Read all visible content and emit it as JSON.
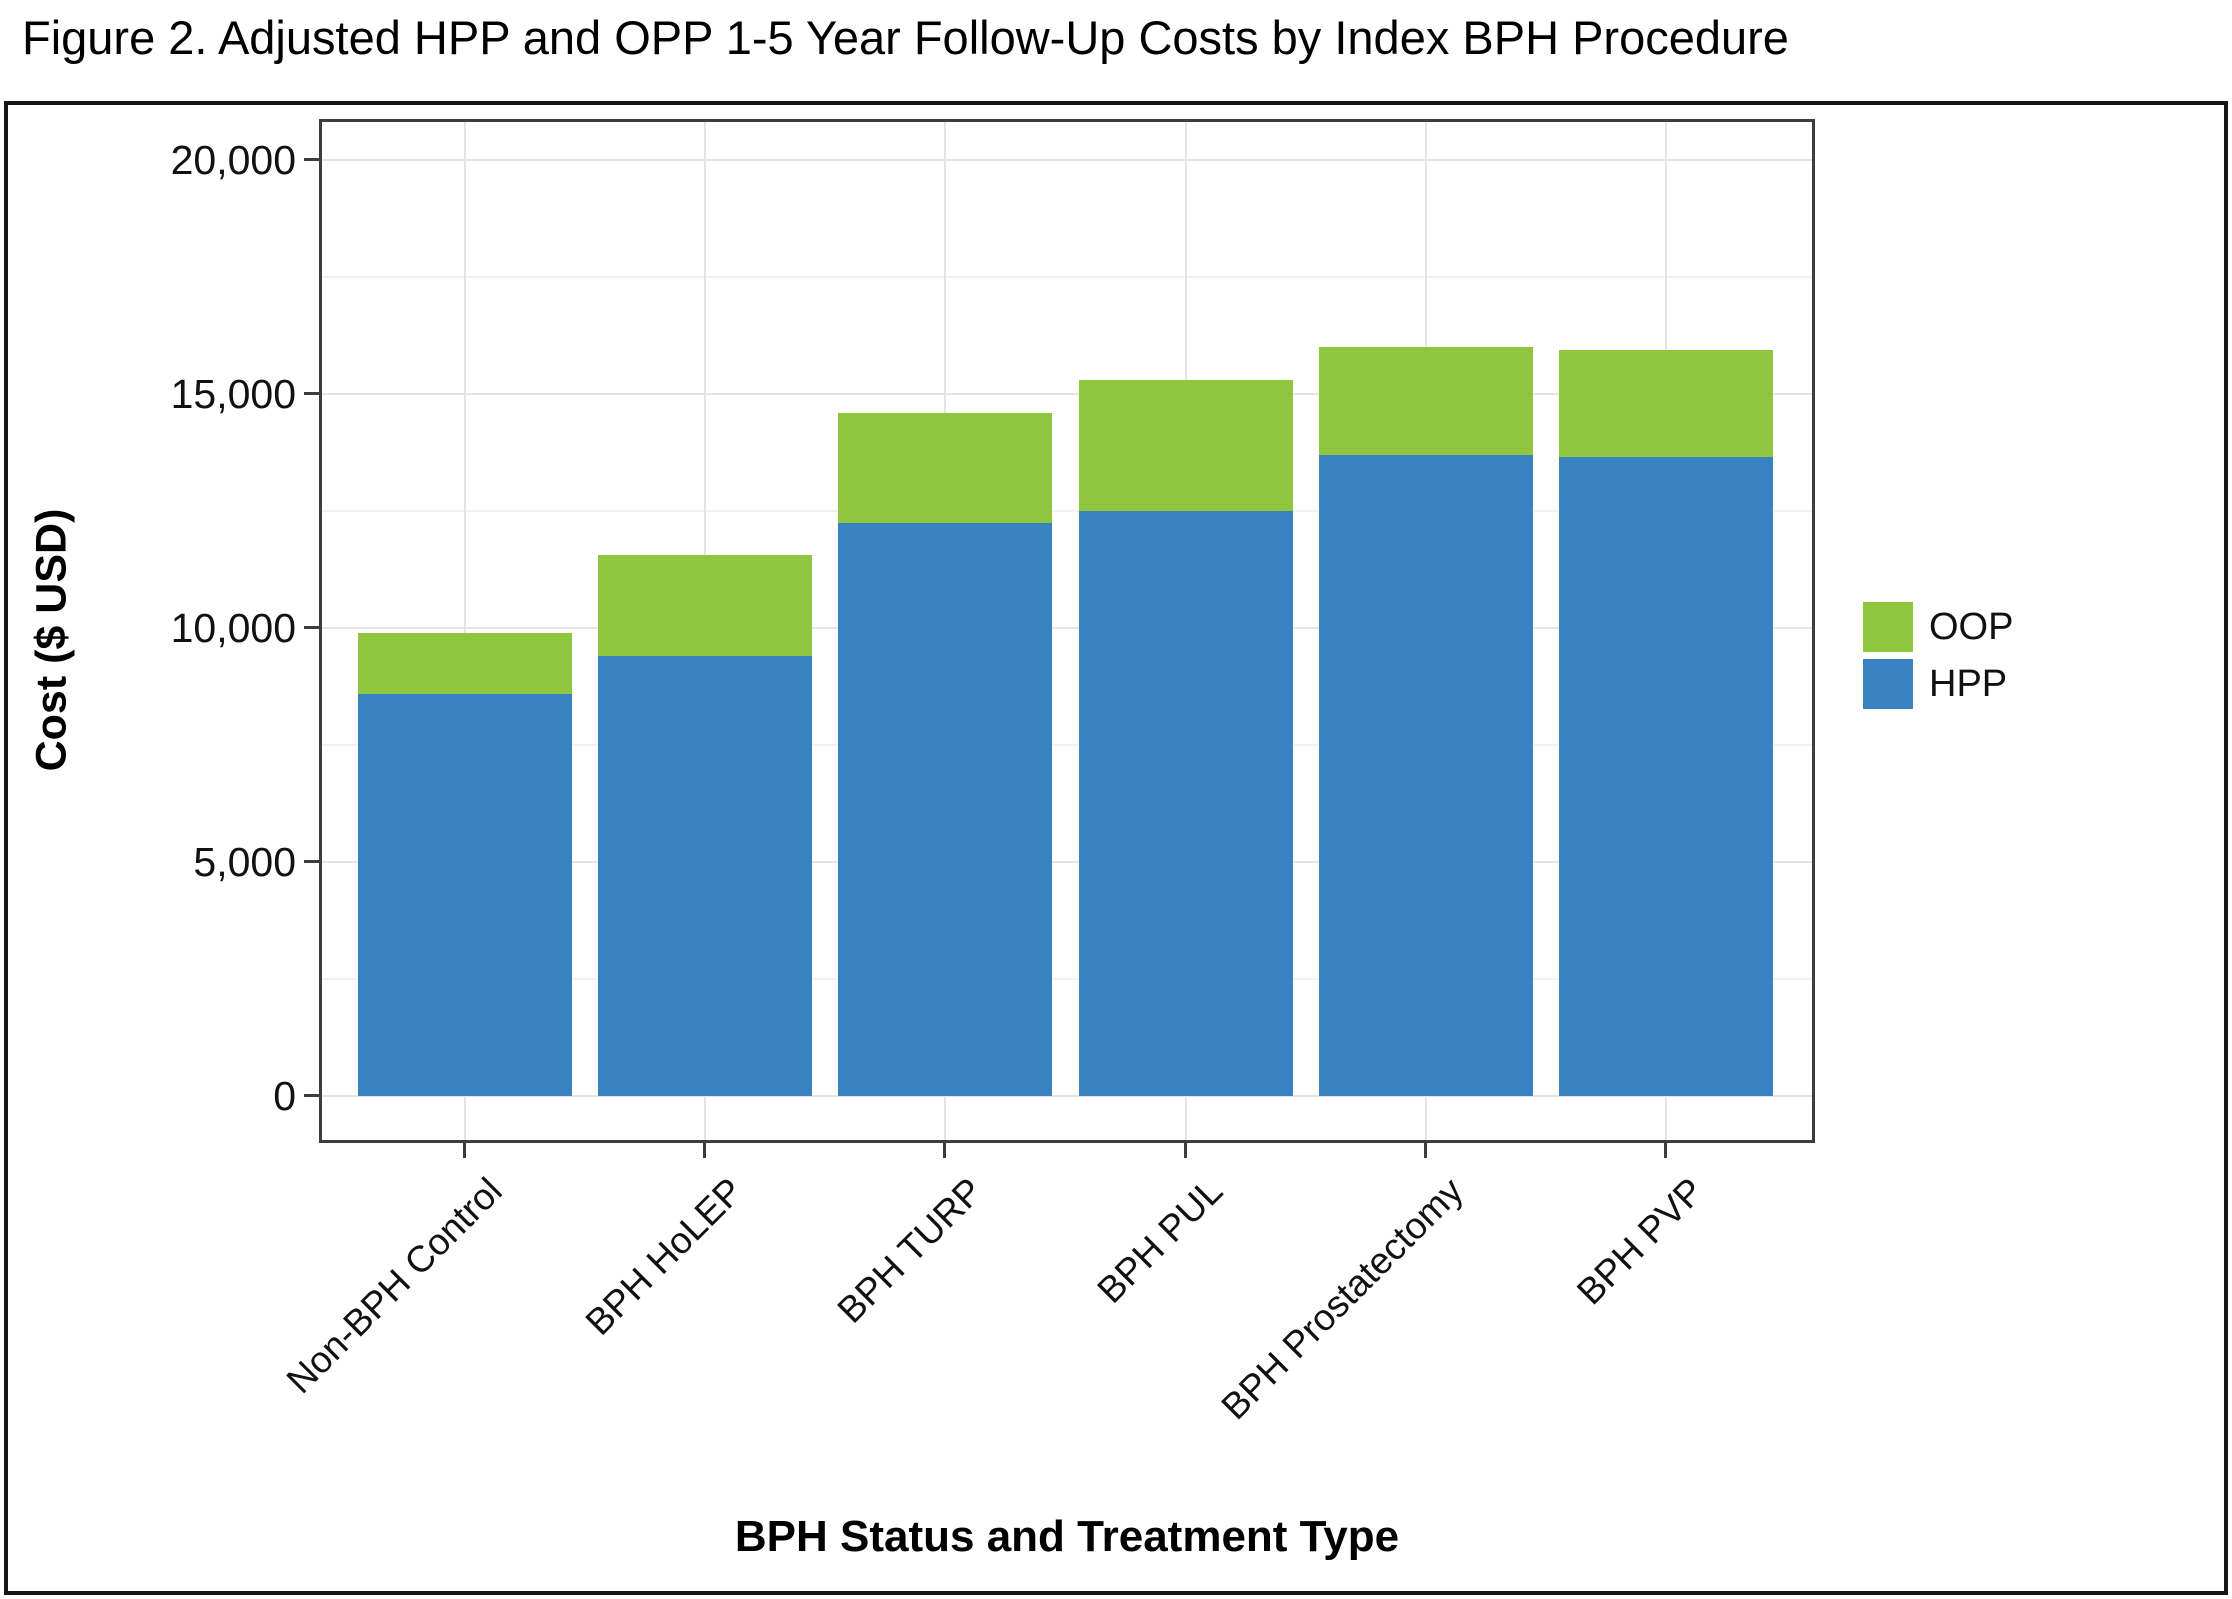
{
  "figure_title": "Figure 2. Adjusted HPP and OPP 1-5 Year Follow-Up Costs by Index BPH Procedure",
  "chart_data": {
    "type": "bar",
    "stacked": true,
    "title": "Figure 2. Adjusted HPP and OPP 1-5 Year Follow-Up Costs by Index BPH Procedure",
    "xlabel": "BPH Status and Treatment Type",
    "ylabel": "Cost ($ USD)",
    "categories": [
      "Non-BPH Control",
      "BPH HoLEP",
      "BPH TURP",
      "BPH PUL",
      "BPH Prostatectomy",
      "BPH PVP"
    ],
    "series": [
      {
        "name": "HPP",
        "color": "#3982c2",
        "values": [
          8600,
          9400,
          12250,
          12500,
          13700,
          13650
        ]
      },
      {
        "name": "OOP",
        "color": "#90c63e",
        "values": [
          1300,
          2150,
          2350,
          2800,
          2300,
          2300
        ]
      }
    ],
    "ylim": [
      0,
      20000
    ],
    "yticks": [
      0,
      5000,
      10000,
      15000,
      20000
    ],
    "ytick_labels": [
      "0",
      "5,000",
      "10,000",
      "15,000",
      "20,000"
    ],
    "minor_yticks": [
      2500,
      7500,
      12500,
      17500
    ],
    "grid": true,
    "legend": {
      "position": "right",
      "entries": [
        {
          "label": "OOP",
          "color": "#90c63e"
        },
        {
          "label": "HPP",
          "color": "#3982c2"
        }
      ]
    }
  },
  "colors": {
    "bar_blue": "#3982c2",
    "bar_green": "#90c63e",
    "grid_major": "#e4e4e4",
    "grid_minor": "#f2f2f2",
    "panel_border": "#3d3d3d",
    "outer_border": "#161616",
    "text": "#111111"
  }
}
